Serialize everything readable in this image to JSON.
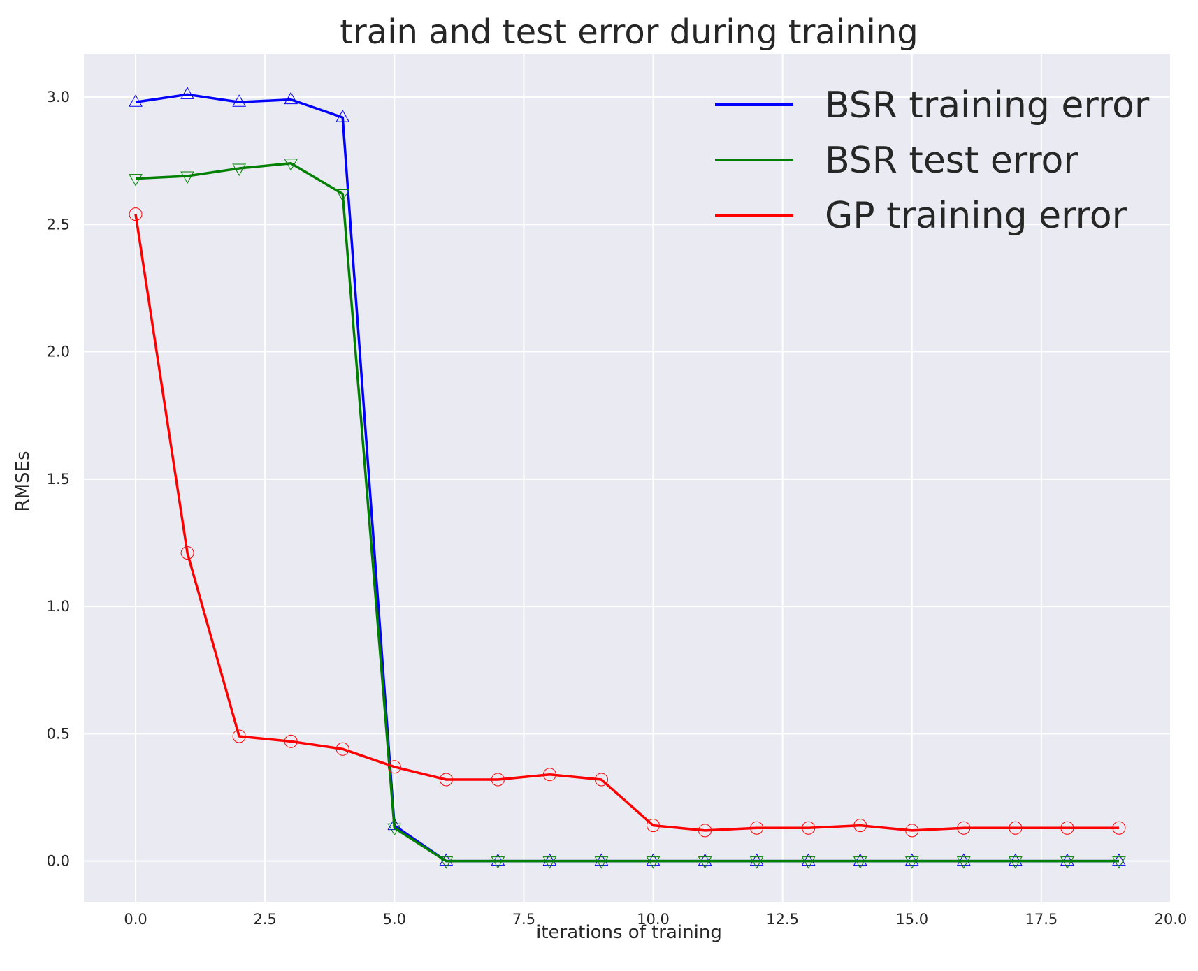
{
  "chart_data": {
    "type": "line",
    "title": "train and test error during training",
    "xlabel": "iterations of training",
    "ylabel": "RMSEs",
    "xlim": [
      -1,
      20
    ],
    "ylim": [
      -0.16,
      3.17
    ],
    "xticks": [
      0.0,
      2.5,
      5.0,
      7.5,
      10.0,
      12.5,
      15.0,
      17.5,
      20.0
    ],
    "xtick_labels": [
      "0.0",
      "2.5",
      "5.0",
      "7.5",
      "10.0",
      "12.5",
      "15.0",
      "17.5",
      "20.0"
    ],
    "yticks": [
      0.0,
      0.5,
      1.0,
      1.5,
      2.0,
      2.5,
      3.0
    ],
    "ytick_labels": [
      "0.0",
      "0.5",
      "1.0",
      "1.5",
      "2.0",
      "2.5",
      "3.0"
    ],
    "grid": true,
    "legend_position": "top-right",
    "background": "#eaeaf2",
    "x": [
      0,
      1,
      2,
      3,
      4,
      5,
      6,
      7,
      8,
      9,
      10,
      11,
      12,
      13,
      14,
      15,
      16,
      17,
      18,
      19
    ],
    "series": [
      {
        "name": "BSR training error",
        "color": "#0000ff",
        "marker": "triangle-up",
        "values": [
          2.98,
          3.01,
          2.98,
          2.99,
          2.92,
          0.14,
          0.0,
          0.0,
          0.0,
          0.0,
          0.0,
          0.0,
          0.0,
          0.0,
          0.0,
          0.0,
          0.0,
          0.0,
          0.0,
          0.0
        ]
      },
      {
        "name": "BSR test error",
        "color": "#008000",
        "marker": "triangle-down",
        "values": [
          2.68,
          2.69,
          2.72,
          2.74,
          2.62,
          0.13,
          0.0,
          0.0,
          0.0,
          0.0,
          0.0,
          0.0,
          0.0,
          0.0,
          0.0,
          0.0,
          0.0,
          0.0,
          0.0,
          0.0
        ]
      },
      {
        "name": "GP training error",
        "color": "#ff0000",
        "marker": "circle",
        "values": [
          2.54,
          1.21,
          0.49,
          0.47,
          0.44,
          0.37,
          0.32,
          0.32,
          0.34,
          0.32,
          0.14,
          0.12,
          0.13,
          0.13,
          0.14,
          0.12,
          0.13,
          0.13,
          0.13,
          0.13
        ]
      }
    ]
  }
}
